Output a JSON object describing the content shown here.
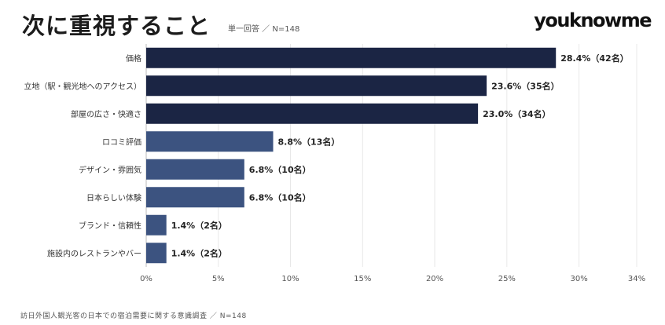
{
  "header": {
    "title": "次に重視すること",
    "subtitle": "単一回答 ／ N=148",
    "brand": "youknowme"
  },
  "footer": {
    "source": "訪日外国人観光客の日本での宿泊需要に関する意識調査 ／ N=148"
  },
  "colors": {
    "bar_dark": "#1b2544",
    "bar_mid": "#3c5380",
    "grid": "#e8e8e8",
    "axis": "#bbbbbb"
  },
  "chart_data": {
    "type": "bar",
    "orientation": "horizontal",
    "categories": [
      "価格",
      "立地（駅・観光地へのアクセス）",
      "部屋の広さ・快適さ",
      "ロコミ評価",
      "デザイン・雰囲気",
      "日本らしい体験",
      "ブランド・信頼性",
      "施設内のレストランやバー"
    ],
    "values": [
      28.4,
      23.6,
      23.0,
      8.8,
      6.8,
      6.8,
      1.4,
      1.4
    ],
    "value_labels": [
      "28.4%（42名）",
      "23.6%（35名）",
      "23.0%（34名）",
      "8.8%（13名）",
      "6.8%（10名）",
      "6.8%（10名）",
      "1.4%（2名）",
      "1.4%（2名）"
    ],
    "xlim": [
      0,
      34
    ],
    "xticks": [
      0,
      5,
      10,
      15,
      20,
      25,
      30,
      34
    ],
    "xtick_labels": [
      "0%",
      "5%",
      "10%",
      "15%",
      "20%",
      "25%",
      "30%",
      "34%"
    ],
    "grid": true
  }
}
